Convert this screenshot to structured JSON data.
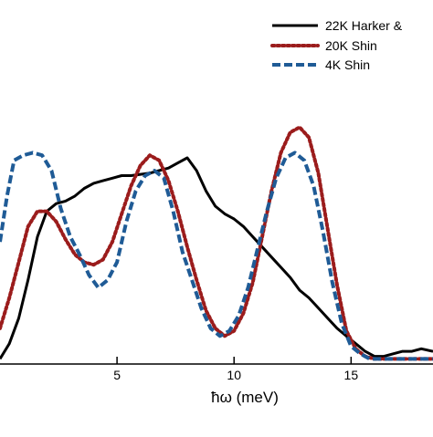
{
  "chart_data": {
    "type": "line",
    "title": "",
    "xlabel": "ħω (meV)",
    "ylabel": "",
    "xlim": [
      0.0,
      18.5
    ],
    "ylim": [
      0.0,
      1.0
    ],
    "grid": false,
    "legend_position": "top-right",
    "x_ticks": [
      5,
      10,
      15
    ],
    "series": [
      {
        "name": "22K Harker &",
        "color": "#000000",
        "style": "solid",
        "points": [
          [
            0.0,
            0.02
          ],
          [
            0.4,
            0.08
          ],
          [
            0.8,
            0.18
          ],
          [
            1.2,
            0.33
          ],
          [
            1.6,
            0.5
          ],
          [
            2.0,
            0.6
          ],
          [
            2.4,
            0.63
          ],
          [
            2.8,
            0.64
          ],
          [
            3.2,
            0.66
          ],
          [
            3.6,
            0.69
          ],
          [
            4.0,
            0.71
          ],
          [
            4.4,
            0.72
          ],
          [
            4.8,
            0.73
          ],
          [
            5.2,
            0.74
          ],
          [
            5.6,
            0.74
          ],
          [
            6.0,
            0.745
          ],
          [
            6.4,
            0.75
          ],
          [
            6.8,
            0.76
          ],
          [
            7.2,
            0.77
          ],
          [
            7.6,
            0.79
          ],
          [
            8.0,
            0.81
          ],
          [
            8.4,
            0.76
          ],
          [
            8.8,
            0.68
          ],
          [
            9.2,
            0.62
          ],
          [
            9.6,
            0.59
          ],
          [
            10.0,
            0.57
          ],
          [
            10.4,
            0.54
          ],
          [
            10.8,
            0.5
          ],
          [
            11.2,
            0.46
          ],
          [
            11.6,
            0.42
          ],
          [
            12.0,
            0.38
          ],
          [
            12.4,
            0.34
          ],
          [
            12.8,
            0.29
          ],
          [
            13.2,
            0.26
          ],
          [
            13.6,
            0.22
          ],
          [
            14.0,
            0.18
          ],
          [
            14.4,
            0.14
          ],
          [
            14.8,
            0.11
          ],
          [
            15.2,
            0.08
          ],
          [
            15.6,
            0.05
          ],
          [
            16.0,
            0.03
          ],
          [
            16.4,
            0.03
          ],
          [
            16.8,
            0.04
          ],
          [
            17.2,
            0.05
          ],
          [
            17.6,
            0.05
          ],
          [
            18.0,
            0.06
          ],
          [
            18.5,
            0.05
          ]
        ]
      },
      {
        "name": "20K Shin",
        "color": "#9b1c1c",
        "style": "dotted",
        "points": [
          [
            0.0,
            0.14
          ],
          [
            0.4,
            0.26
          ],
          [
            0.8,
            0.4
          ],
          [
            1.2,
            0.54
          ],
          [
            1.6,
            0.6
          ],
          [
            2.0,
            0.6
          ],
          [
            2.4,
            0.56
          ],
          [
            2.8,
            0.49
          ],
          [
            3.2,
            0.43
          ],
          [
            3.6,
            0.4
          ],
          [
            4.0,
            0.39
          ],
          [
            4.4,
            0.41
          ],
          [
            4.8,
            0.48
          ],
          [
            5.2,
            0.59
          ],
          [
            5.6,
            0.7
          ],
          [
            6.0,
            0.78
          ],
          [
            6.4,
            0.82
          ],
          [
            6.8,
            0.8
          ],
          [
            7.2,
            0.72
          ],
          [
            7.6,
            0.6
          ],
          [
            8.0,
            0.46
          ],
          [
            8.4,
            0.33
          ],
          [
            8.8,
            0.21
          ],
          [
            9.2,
            0.14
          ],
          [
            9.6,
            0.11
          ],
          [
            10.0,
            0.13
          ],
          [
            10.4,
            0.2
          ],
          [
            10.8,
            0.32
          ],
          [
            11.2,
            0.5
          ],
          [
            11.6,
            0.68
          ],
          [
            12.0,
            0.83
          ],
          [
            12.4,
            0.91
          ],
          [
            12.8,
            0.93
          ],
          [
            13.2,
            0.89
          ],
          [
            13.6,
            0.75
          ],
          [
            14.0,
            0.53
          ],
          [
            14.4,
            0.31
          ],
          [
            14.8,
            0.13
          ],
          [
            15.2,
            0.06
          ],
          [
            15.6,
            0.03
          ],
          [
            16.0,
            0.02
          ],
          [
            16.5,
            0.02
          ],
          [
            17.0,
            0.02
          ],
          [
            17.5,
            0.02
          ],
          [
            18.0,
            0.02
          ],
          [
            18.5,
            0.02
          ]
        ]
      },
      {
        "name": "4K Shin",
        "color": "#1f5b96",
        "style": "dashed",
        "points": [
          [
            0.0,
            0.48
          ],
          [
            0.3,
            0.66
          ],
          [
            0.6,
            0.8
          ],
          [
            1.0,
            0.82
          ],
          [
            1.4,
            0.83
          ],
          [
            1.8,
            0.82
          ],
          [
            2.2,
            0.76
          ],
          [
            2.6,
            0.61
          ],
          [
            3.0,
            0.5
          ],
          [
            3.4,
            0.43
          ],
          [
            3.8,
            0.35
          ],
          [
            4.2,
            0.3
          ],
          [
            4.6,
            0.33
          ],
          [
            5.0,
            0.4
          ],
          [
            5.4,
            0.56
          ],
          [
            5.8,
            0.68
          ],
          [
            6.2,
            0.74
          ],
          [
            6.6,
            0.76
          ],
          [
            7.0,
            0.73
          ],
          [
            7.4,
            0.6
          ],
          [
            7.8,
            0.44
          ],
          [
            8.2,
            0.33
          ],
          [
            8.6,
            0.22
          ],
          [
            9.0,
            0.14
          ],
          [
            9.4,
            0.11
          ],
          [
            9.8,
            0.13
          ],
          [
            10.2,
            0.19
          ],
          [
            10.6,
            0.3
          ],
          [
            11.0,
            0.45
          ],
          [
            11.4,
            0.6
          ],
          [
            11.8,
            0.73
          ],
          [
            12.2,
            0.81
          ],
          [
            12.6,
            0.83
          ],
          [
            13.0,
            0.8
          ],
          [
            13.4,
            0.7
          ],
          [
            13.8,
            0.52
          ],
          [
            14.2,
            0.32
          ],
          [
            14.6,
            0.16
          ],
          [
            15.0,
            0.07
          ],
          [
            15.4,
            0.04
          ],
          [
            15.8,
            0.02
          ],
          [
            16.3,
            0.02
          ],
          [
            17.0,
            0.02
          ],
          [
            17.6,
            0.02
          ],
          [
            18.5,
            0.02
          ]
        ]
      }
    ]
  }
}
